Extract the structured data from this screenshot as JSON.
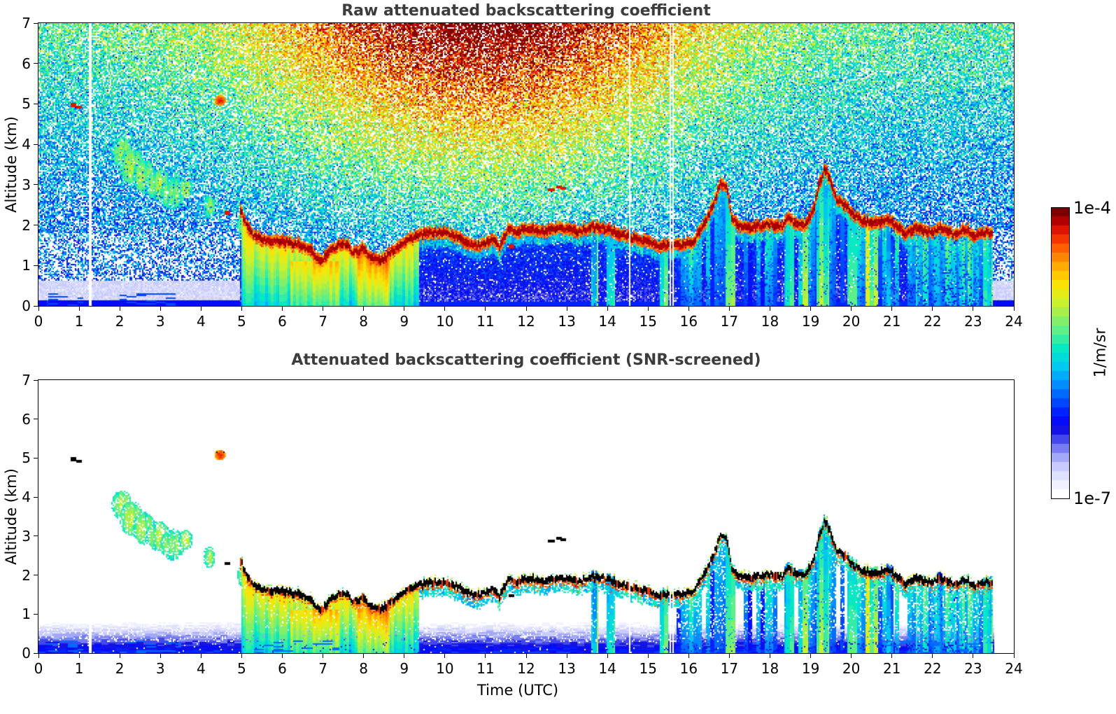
{
  "figure": {
    "panels": [
      {
        "title": "Raw attenuated backscattering coefficient"
      },
      {
        "title": "Attenuated backscattering coefficient (SNR-screened)"
      }
    ],
    "x_axis": {
      "label": "Time (UTC)",
      "min": 0,
      "max": 24,
      "tick_labels": [
        "0",
        "1",
        "2",
        "3",
        "4",
        "5",
        "6",
        "7",
        "8",
        "9",
        "10",
        "11",
        "12",
        "13",
        "14",
        "15",
        "16",
        "17",
        "18",
        "19",
        "20",
        "21",
        "22",
        "23",
        "24"
      ]
    },
    "y_axis": {
      "label": "Altitude (km)",
      "min": 0,
      "max": 7,
      "tick_labels": [
        "0",
        "1",
        "2",
        "3",
        "4",
        "5",
        "6",
        "7"
      ]
    },
    "colorbar": {
      "top_label": "1e-4",
      "bottom_label": "1e-7",
      "unit_label": "1/m/sr"
    }
  },
  "chart_data": {
    "type": "heatmap",
    "title": "Ceilometer attenuated backscattering coefficient, raw and SNR-screened",
    "xlabel": "Time (UTC)",
    "ylabel": "Altitude (km)",
    "xlim": [
      0,
      24
    ],
    "ylim": [
      0,
      7
    ],
    "colorbar": {
      "scale": "log",
      "vmin": 1e-07,
      "vmax": 0.0001,
      "unit": "1/m/sr",
      "steps": 32,
      "stops": [
        [
          0.0,
          [
            255,
            255,
            255
          ]
        ],
        [
          0.05,
          [
            232,
            233,
            255
          ]
        ],
        [
          0.1,
          [
            198,
            201,
            253
          ]
        ],
        [
          0.14,
          [
            150,
            155,
            248
          ]
        ],
        [
          0.18,
          [
            92,
            97,
            238
          ]
        ],
        [
          0.22,
          [
            20,
            20,
            224
          ]
        ],
        [
          0.27,
          [
            0,
            10,
            255
          ]
        ],
        [
          0.33,
          [
            0,
            80,
            255
          ]
        ],
        [
          0.39,
          [
            0,
            144,
            255
          ]
        ],
        [
          0.45,
          [
            0,
            200,
            240
          ]
        ],
        [
          0.51,
          [
            0,
            232,
            200
          ]
        ],
        [
          0.57,
          [
            80,
            240,
            144
          ]
        ],
        [
          0.63,
          [
            152,
            238,
            88
          ]
        ],
        [
          0.69,
          [
            216,
            240,
            32
          ]
        ],
        [
          0.75,
          [
            255,
            224,
            0
          ]
        ],
        [
          0.81,
          [
            255,
            168,
            0
          ]
        ],
        [
          0.87,
          [
            255,
            96,
            0
          ]
        ],
        [
          0.92,
          [
            240,
            32,
            0
          ]
        ],
        [
          0.96,
          [
            192,
            0,
            0
          ]
        ],
        [
          1.0,
          [
            122,
            0,
            0
          ]
        ]
      ]
    },
    "features": {
      "data_end": 23.52,
      "gap_times": [
        1.27,
        14.56,
        15.54,
        15.62
      ],
      "cloud_base": [
        [
          4.95,
          2.45
        ],
        [
          5.1,
          2.05
        ],
        [
          5.3,
          1.75
        ],
        [
          5.6,
          1.62
        ],
        [
          6.0,
          1.6
        ],
        [
          6.4,
          1.52
        ],
        [
          6.7,
          1.35
        ],
        [
          6.95,
          1.08
        ],
        [
          7.15,
          1.32
        ],
        [
          7.4,
          1.55
        ],
        [
          7.6,
          1.5
        ],
        [
          7.75,
          1.32
        ],
        [
          8.0,
          1.42
        ],
        [
          8.2,
          1.18
        ],
        [
          8.45,
          1.12
        ],
        [
          8.7,
          1.35
        ],
        [
          9.0,
          1.6
        ],
        [
          9.3,
          1.72
        ],
        [
          9.7,
          1.82
        ],
        [
          10.1,
          1.8
        ],
        [
          10.5,
          1.6
        ],
        [
          10.8,
          1.48
        ],
        [
          11.0,
          1.52
        ],
        [
          11.15,
          1.7
        ],
        [
          11.35,
          1.45
        ],
        [
          11.55,
          1.88
        ],
        [
          11.8,
          1.85
        ],
        [
          12.1,
          1.92
        ],
        [
          12.4,
          1.82
        ],
        [
          12.7,
          1.88
        ],
        [
          13.0,
          1.92
        ],
        [
          13.3,
          1.85
        ],
        [
          13.6,
          1.95
        ],
        [
          13.9,
          1.92
        ],
        [
          14.2,
          1.82
        ],
        [
          14.6,
          1.68
        ],
        [
          15.0,
          1.6
        ],
        [
          15.25,
          1.45
        ],
        [
          15.5,
          1.52
        ],
        [
          15.8,
          1.5
        ],
        [
          16.1,
          1.58
        ],
        [
          16.35,
          1.95
        ],
        [
          16.6,
          2.5
        ],
        [
          16.8,
          3.05
        ],
        [
          16.95,
          2.9
        ],
        [
          17.05,
          2.2
        ],
        [
          17.2,
          1.98
        ],
        [
          17.6,
          1.95
        ],
        [
          18.0,
          2.02
        ],
        [
          18.3,
          1.95
        ],
        [
          18.45,
          2.2
        ],
        [
          18.6,
          2.05
        ],
        [
          18.85,
          1.98
        ],
        [
          19.05,
          2.3
        ],
        [
          19.2,
          2.95
        ],
        [
          19.35,
          3.4
        ],
        [
          19.5,
          3.1
        ],
        [
          19.65,
          2.6
        ],
        [
          19.85,
          2.5
        ],
        [
          20.05,
          2.25
        ],
        [
          20.3,
          2.1
        ],
        [
          20.6,
          2.08
        ],
        [
          20.9,
          2.12
        ],
        [
          21.1,
          2.0
        ],
        [
          21.35,
          1.78
        ],
        [
          21.6,
          1.95
        ],
        [
          21.9,
          1.82
        ],
        [
          22.2,
          1.92
        ],
        [
          22.5,
          1.78
        ],
        [
          22.8,
          1.88
        ],
        [
          23.1,
          1.72
        ],
        [
          23.3,
          1.85
        ],
        [
          23.5,
          1.78
        ]
      ],
      "boundary_layer_fill": {
        "t_start": 5.0,
        "t_end": 9.35,
        "orange_windows": [
          [
            7.85,
            8.65
          ],
          [
            6.2,
            7.4
          ]
        ]
      },
      "streaky_region": [
        15.7,
        23.52
      ],
      "late_green_fill": [
        21.6,
        23.52
      ],
      "precip_events": [
        [
          13.6,
          13.78,
          0.55
        ],
        [
          13.97,
          14.17,
          0.6
        ],
        [
          15.3,
          15.48,
          0.5
        ],
        [
          16.9,
          17.15,
          0.6
        ],
        [
          18.35,
          18.58,
          0.52
        ],
        [
          18.7,
          18.95,
          0.62
        ],
        [
          19.15,
          19.45,
          0.55
        ],
        [
          19.9,
          20.15,
          0.66
        ],
        [
          20.35,
          20.65,
          0.68
        ],
        [
          20.85,
          21.05,
          0.5
        ],
        [
          22.1,
          22.25,
          0.45
        ],
        [
          23.25,
          23.5,
          0.6
        ]
      ],
      "aerosol_patches": [
        [
          2.05,
          3.8,
          0.25,
          0.38
        ],
        [
          2.3,
          3.45,
          0.3,
          0.45
        ],
        [
          2.6,
          3.2,
          0.28,
          0.42
        ],
        [
          2.95,
          3.0,
          0.3,
          0.38
        ],
        [
          3.3,
          2.78,
          0.3,
          0.4
        ],
        [
          3.62,
          2.9,
          0.18,
          0.25
        ],
        [
          4.2,
          2.45,
          0.15,
          0.28
        ],
        [
          5.0,
          2.0,
          0.1,
          0.3
        ]
      ],
      "elevated_plume": [
        4.47,
        5.08,
        0.14
      ],
      "black_dashes": [
        [
          0.85,
          4.97
        ],
        [
          1.0,
          4.93
        ],
        [
          4.65,
          2.3
        ],
        [
          12.62,
          2.87
        ],
        [
          12.8,
          2.95
        ],
        [
          12.92,
          2.9
        ],
        [
          11.63,
          1.47
        ]
      ],
      "wisp_windows": [
        [
          0.2,
          1.1
        ],
        [
          2.0,
          3.5
        ],
        [
          5.2,
          7.4
        ],
        [
          20.8,
          23.3
        ]
      ],
      "noise_model": {
        "base": 0.3,
        "alt_exp": 1.15,
        "amp": 0.26,
        "solar_amp": 0.52,
        "solar_peak": 10.9,
        "solar_width": 5.4
      }
    }
  }
}
